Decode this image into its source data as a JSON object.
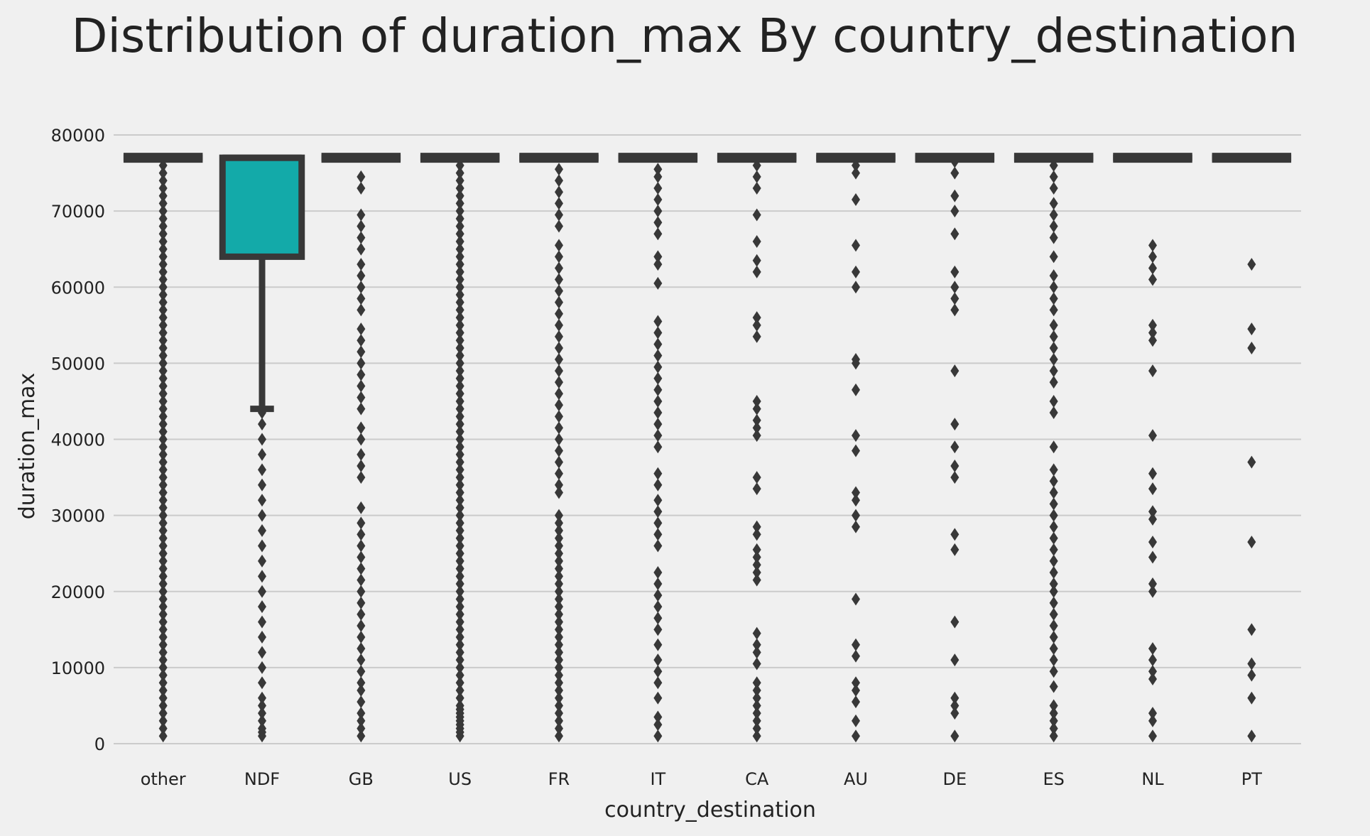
{
  "chart_data": {
    "type": "boxplot",
    "title": "Distribution of duration_max By country_destination",
    "xlabel": "country_destination",
    "ylabel": "duration_max",
    "ylim": [
      0,
      80000
    ],
    "yticks": [
      0,
      10000,
      20000,
      30000,
      40000,
      50000,
      60000,
      70000,
      80000
    ],
    "grid": true,
    "colors": {
      "box_fill": "#13aaa9",
      "line": "#383838",
      "grid": "#cbcbcb",
      "background": "#f0f0f0"
    },
    "categories": [
      "other",
      "NDF",
      "GB",
      "US",
      "FR",
      "IT",
      "CA",
      "AU",
      "DE",
      "ES",
      "NL",
      "PT"
    ],
    "boxes": [
      {
        "category": "other",
        "q1": 77000,
        "median": 77000,
        "q3": 77000,
        "whisker_low": 77000,
        "whisker_high": 77000,
        "outliers": [
          1000,
          2000,
          3000,
          4000,
          5000,
          6000,
          7000,
          8000,
          9000,
          10000,
          11000,
          12000,
          13000,
          14000,
          15000,
          16000,
          17000,
          18000,
          19000,
          20000,
          21000,
          22000,
          23000,
          24000,
          25000,
          26000,
          27000,
          28000,
          29000,
          30000,
          31000,
          32000,
          33000,
          34000,
          35000,
          36000,
          37000,
          38000,
          39000,
          40000,
          41000,
          42000,
          43000,
          44000,
          45000,
          46000,
          47000,
          48000,
          49000,
          50000,
          51000,
          52000,
          53000,
          54000,
          55000,
          56000,
          57000,
          58000,
          59000,
          60000,
          61000,
          62000,
          63000,
          64000,
          65000,
          66000,
          67000,
          68000,
          69000,
          70000,
          71000,
          72000,
          73000,
          74000,
          75000,
          76000
        ]
      },
      {
        "category": "NDF",
        "q1": 64000,
        "median": 77000,
        "q3": 77000,
        "whisker_low": 44000,
        "whisker_high": 77000,
        "outliers": [
          1000,
          1500,
          2000,
          3000,
          4000,
          5000,
          6000,
          8000,
          10000,
          12000,
          14000,
          16000,
          18000,
          20000,
          22000,
          24000,
          26000,
          28000,
          30000,
          32000,
          34000,
          36000,
          38000,
          40000,
          42000,
          43500
        ]
      },
      {
        "category": "GB",
        "q1": 77000,
        "median": 77000,
        "q3": 77000,
        "whisker_low": 77000,
        "whisker_high": 77000,
        "outliers": [
          1000,
          2000,
          3000,
          4000,
          5500,
          7000,
          8000,
          9500,
          11000,
          12500,
          14000,
          15500,
          17000,
          18500,
          20000,
          21500,
          23000,
          24500,
          26000,
          27500,
          29000,
          31000,
          35000,
          36500,
          38000,
          40000,
          41500,
          44000,
          45500,
          47000,
          48500,
          50000,
          51500,
          53000,
          54500,
          57000,
          58500,
          60000,
          61500,
          63000,
          65000,
          66500,
          68000,
          69500,
          73000,
          74500
        ]
      },
      {
        "category": "US",
        "q1": 77000,
        "median": 77000,
        "q3": 77000,
        "whisker_low": 77000,
        "whisker_high": 77000,
        "outliers": [
          1000,
          1500,
          2000,
          2500,
          3000,
          3500,
          4000,
          4500,
          5000,
          6000,
          7000,
          8000,
          9000,
          10000,
          11000,
          12000,
          13000,
          14000,
          15000,
          16000,
          17000,
          18000,
          19000,
          20000,
          21000,
          22000,
          23000,
          24000,
          25000,
          26000,
          27000,
          28000,
          29000,
          30000,
          31000,
          32000,
          33000,
          34000,
          35000,
          36000,
          37000,
          38000,
          39000,
          40000,
          41000,
          42000,
          43000,
          44000,
          45000,
          46000,
          47000,
          48000,
          49000,
          50000,
          51000,
          52000,
          53000,
          54000,
          55000,
          56000,
          57000,
          58000,
          59000,
          60000,
          61000,
          62000,
          63000,
          64000,
          65000,
          66000,
          67000,
          68000,
          69000,
          70000,
          71000,
          72000,
          73000,
          74000,
          75000,
          76000
        ]
      },
      {
        "category": "FR",
        "q1": 77000,
        "median": 77000,
        "q3": 77000,
        "whisker_low": 77000,
        "whisker_high": 77000,
        "outliers": [
          1000,
          2000,
          3000,
          4000,
          5000,
          6000,
          7000,
          8000,
          9000,
          10000,
          11000,
          12000,
          13000,
          14000,
          15000,
          16000,
          17000,
          18000,
          19000,
          20000,
          21000,
          22000,
          23000,
          24000,
          25000,
          26000,
          27000,
          28000,
          29000,
          30000,
          33000,
          34000,
          35500,
          37000,
          38500,
          40000,
          41500,
          43000,
          44500,
          46000,
          47500,
          49000,
          50500,
          52000,
          53500,
          55000,
          56500,
          58000,
          59500,
          61000,
          62500,
          64000,
          65500,
          68000,
          69500,
          71000,
          72500,
          74000,
          75500
        ]
      },
      {
        "category": "IT",
        "q1": 77000,
        "median": 77000,
        "q3": 77000,
        "whisker_low": 77000,
        "whisker_high": 77000,
        "outliers": [
          1000,
          2500,
          3500,
          6000,
          8000,
          9500,
          11000,
          13000,
          15000,
          16500,
          18000,
          19500,
          21000,
          22500,
          26000,
          27500,
          29000,
          30500,
          32000,
          34000,
          35500,
          39000,
          40500,
          42000,
          43500,
          45000,
          46500,
          48000,
          49500,
          51000,
          52500,
          54000,
          55500,
          60500,
          63000,
          64000,
          67000,
          68500,
          70000,
          71500,
          73000,
          74500,
          75500
        ]
      },
      {
        "category": "CA",
        "q1": 77000,
        "median": 77000,
        "q3": 77000,
        "whisker_low": 77000,
        "whisker_high": 77000,
        "outliers": [
          1000,
          2000,
          3000,
          4000,
          5000,
          6000,
          7000,
          8000,
          10500,
          12000,
          13000,
          14500,
          21500,
          22500,
          23500,
          24500,
          25500,
          27500,
          28500,
          33500,
          35000,
          40500,
          41500,
          42500,
          44000,
          45000,
          53500,
          55000,
          56000,
          62000,
          63500,
          66000,
          69500,
          73000,
          74500,
          76000
        ]
      },
      {
        "category": "AU",
        "q1": 77000,
        "median": 77000,
        "q3": 77000,
        "whisker_low": 77000,
        "whisker_high": 77000,
        "outliers": [
          1000,
          3000,
          5500,
          7000,
          8000,
          11500,
          13000,
          19000,
          28500,
          30000,
          32000,
          33000,
          38500,
          40500,
          46500,
          50000,
          50500,
          60000,
          62000,
          65500,
          71500,
          75000,
          76000
        ]
      },
      {
        "category": "DE",
        "q1": 77000,
        "median": 77000,
        "q3": 77000,
        "whisker_low": 77000,
        "whisker_high": 77000,
        "outliers": [
          1000,
          4000,
          5000,
          6000,
          11000,
          16000,
          25500,
          27500,
          35000,
          36500,
          39000,
          42000,
          49000,
          57000,
          58500,
          60000,
          62000,
          67000,
          70000,
          72000,
          75000,
          76500
        ]
      },
      {
        "category": "ES",
        "q1": 77000,
        "median": 77000,
        "q3": 77000,
        "whisker_low": 77000,
        "whisker_high": 77000,
        "outliers": [
          1000,
          2000,
          3000,
          4000,
          5000,
          7500,
          9500,
          11000,
          12500,
          14000,
          15500,
          17000,
          18500,
          20000,
          21000,
          22500,
          24000,
          25500,
          27000,
          28500,
          30000,
          31500,
          33000,
          34500,
          36000,
          39000,
          43500,
          45000,
          47500,
          49000,
          50500,
          52000,
          53500,
          55000,
          57000,
          58500,
          60000,
          61500,
          64000,
          66500,
          68000,
          69500,
          71000,
          73000,
          74500,
          76000
        ]
      },
      {
        "category": "NL",
        "q1": 77000,
        "median": 77000,
        "q3": 77000,
        "whisker_low": 77000,
        "whisker_high": 77000,
        "outliers": [
          1000,
          3000,
          4000,
          8500,
          9500,
          11000,
          12500,
          20000,
          21000,
          24500,
          26500,
          29500,
          30500,
          33500,
          35500,
          40500,
          49000,
          53000,
          54000,
          55000,
          61000,
          62500,
          64000,
          65500
        ]
      },
      {
        "category": "PT",
        "q1": 77000,
        "median": 77000,
        "q3": 77000,
        "whisker_low": 77000,
        "whisker_high": 77000,
        "outliers": [
          1000,
          6000,
          9000,
          10500,
          15000,
          26500,
          37000,
          52000,
          54500,
          63000
        ]
      }
    ]
  }
}
